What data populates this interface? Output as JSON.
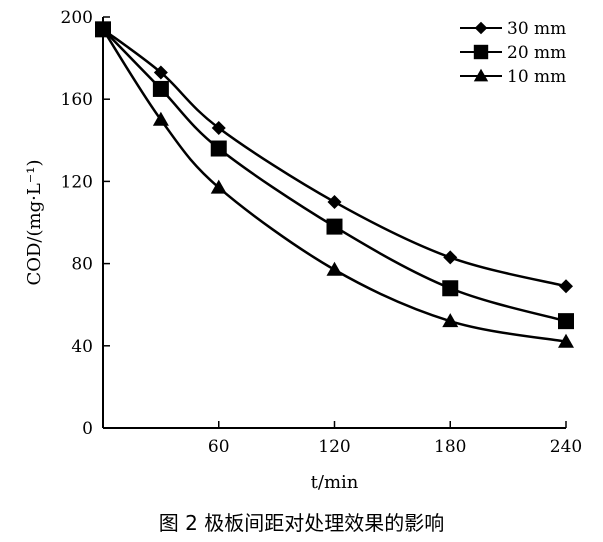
{
  "caption": "图 2    极板间距对处理效果的影响",
  "chart_data": {
    "type": "line",
    "xlabel": "t/min",
    "ylabel": "COD/(mg·L⁻¹)",
    "xlim": [
      0,
      240
    ],
    "ylim": [
      0,
      200
    ],
    "x_ticks": [
      60,
      120,
      180,
      240
    ],
    "y_ticks": [
      0,
      40,
      80,
      120,
      160,
      200
    ],
    "grid": false,
    "legend_position": "top-right",
    "series": [
      {
        "name": "30 mm",
        "marker": "diamond",
        "color": "#000000",
        "x": [
          0,
          30,
          60,
          120,
          180,
          240
        ],
        "y": [
          194,
          173,
          146,
          110,
          83,
          69
        ]
      },
      {
        "name": "20 mm",
        "marker": "square",
        "color": "#000000",
        "x": [
          0,
          30,
          60,
          120,
          180,
          240
        ],
        "y": [
          194,
          165,
          136,
          98,
          68,
          52
        ]
      },
      {
        "name": "10 mm",
        "marker": "triangle",
        "color": "#000000",
        "x": [
          0,
          30,
          60,
          120,
          180,
          240
        ],
        "y": [
          194,
          150,
          117,
          77,
          52,
          42
        ]
      }
    ]
  }
}
